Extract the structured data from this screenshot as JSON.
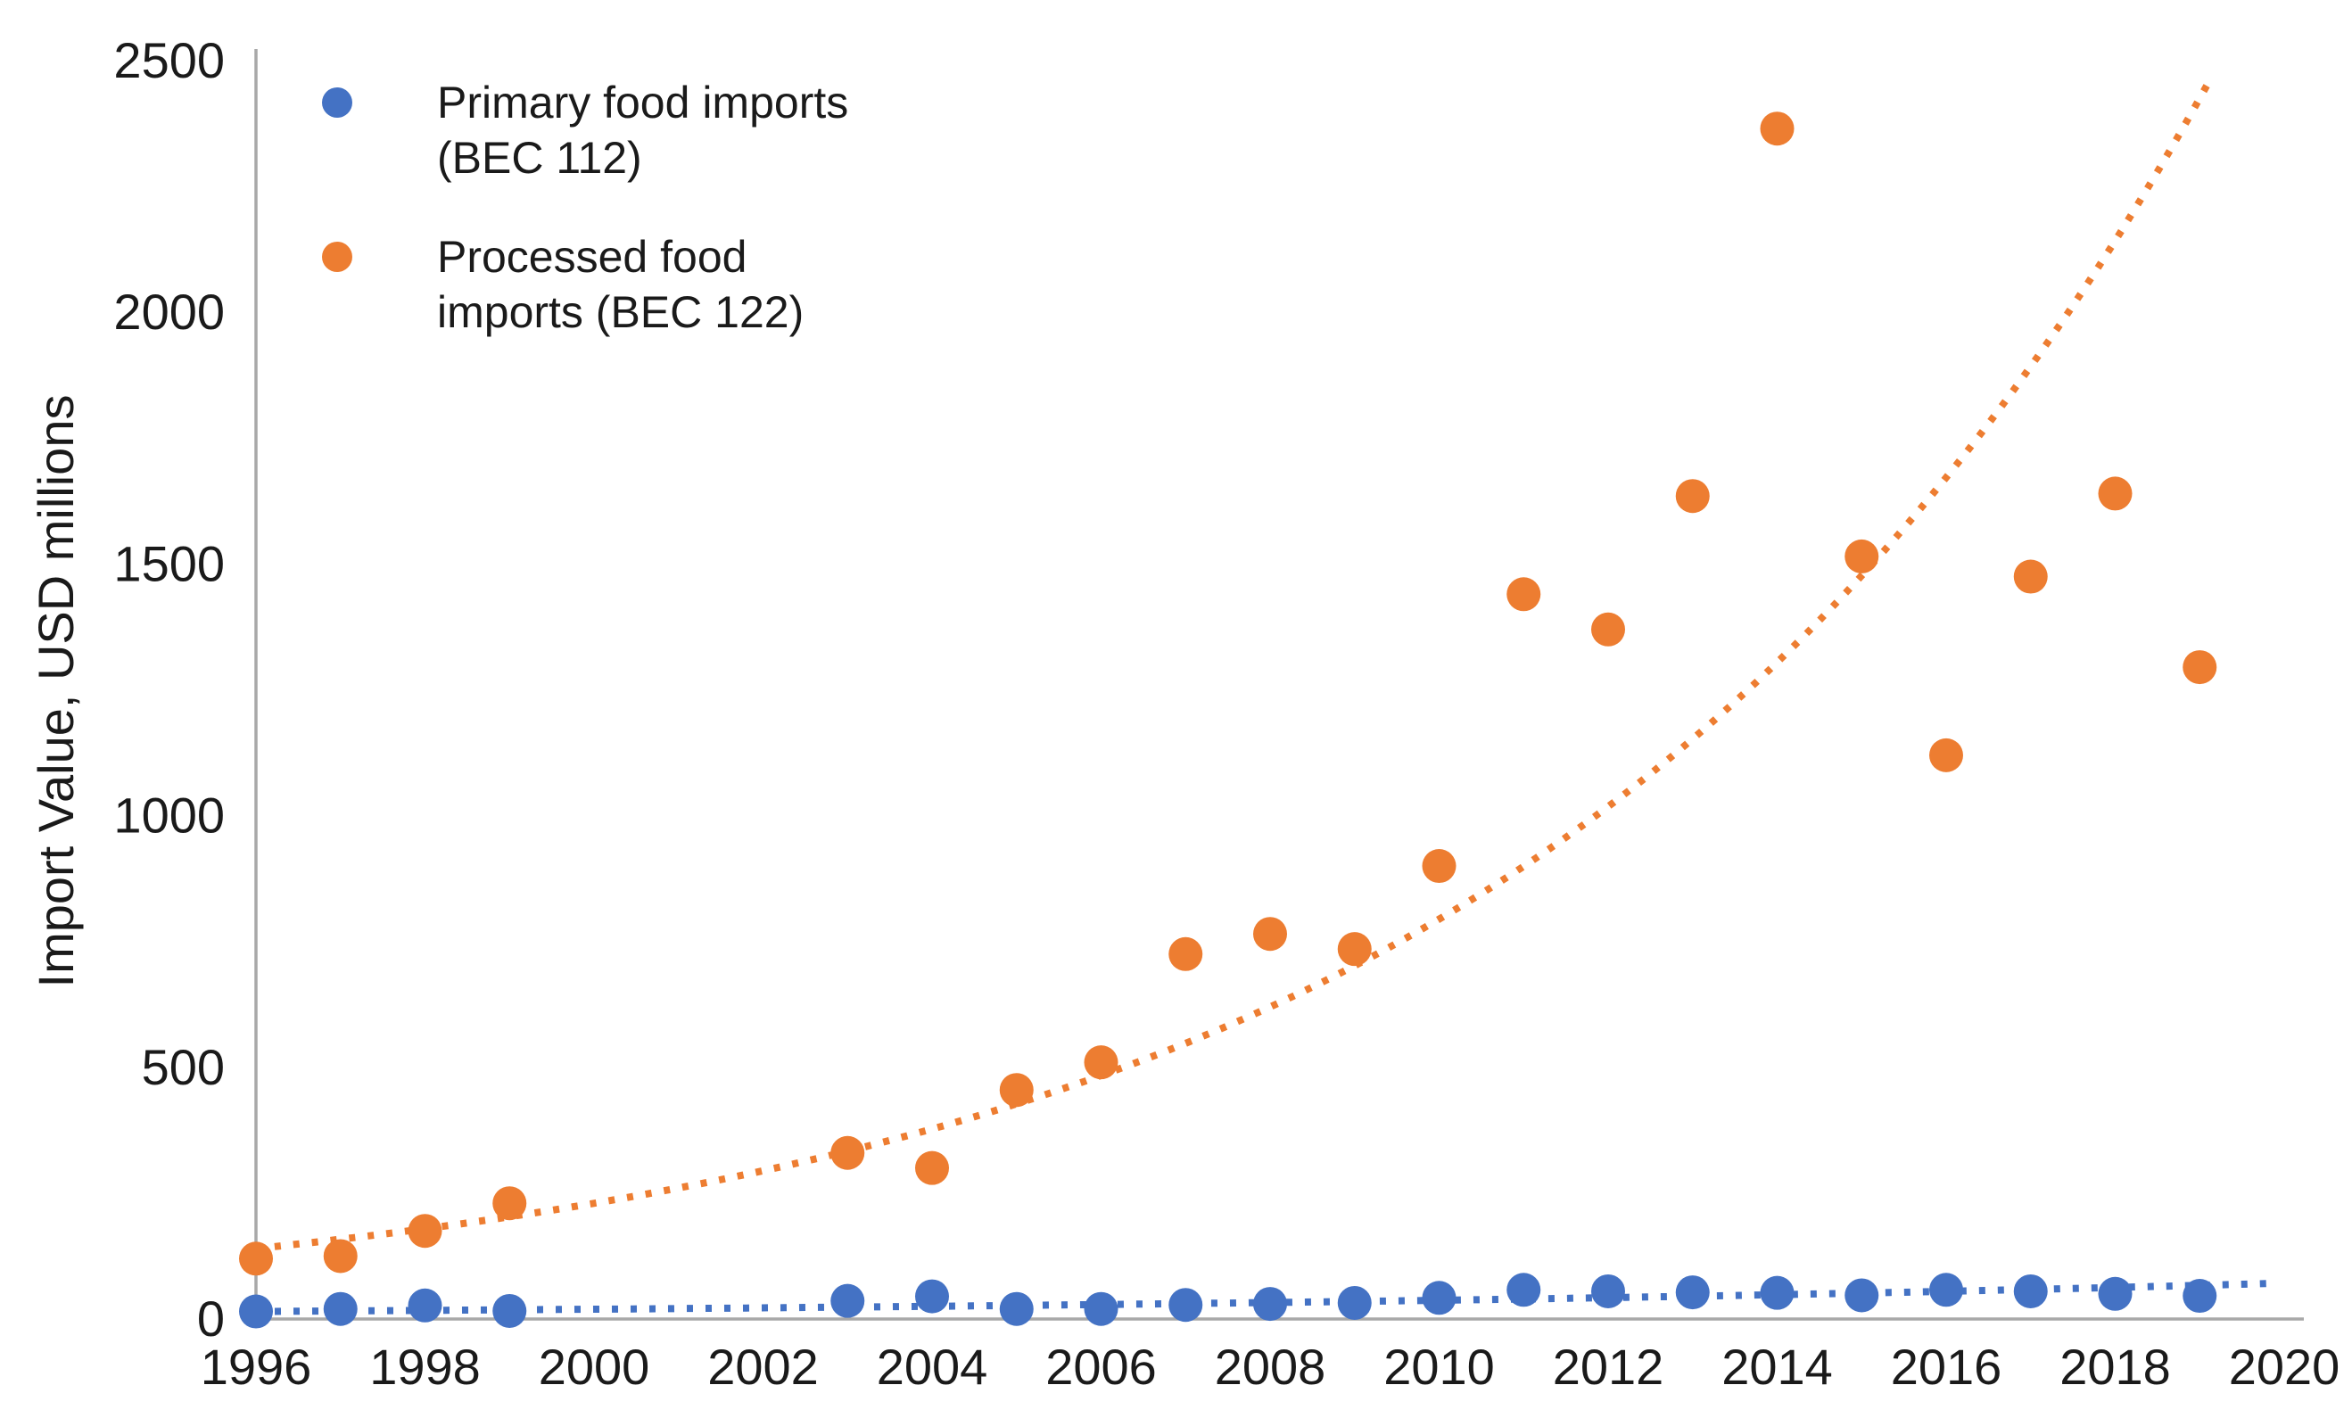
{
  "chart_data": {
    "type": "scatter",
    "title": "",
    "xlabel": "",
    "ylabel": "Import Value, USD millions",
    "xlim": [
      1996,
      2020.3
    ],
    "ylim": [
      0,
      2500
    ],
    "grid": false,
    "x_ticks": [
      "1996",
      "1998",
      "2000",
      "2002",
      "2004",
      "2006",
      "2008",
      "2010",
      "2012",
      "2014",
      "2016",
      "2018",
      "2020"
    ],
    "y_ticks": [
      "0",
      "500",
      "1000",
      "1500",
      "2000",
      "2500"
    ],
    "x": [
      1996,
      1997,
      1998,
      1999,
      2003,
      2004,
      2005,
      2006,
      2007,
      2008,
      2009,
      2010,
      2011,
      2012,
      2013,
      2014,
      2015,
      2016,
      2017,
      2018,
      2019
    ],
    "series": [
      {
        "id": "primary",
        "name": "Primary food imports (BEC 112)",
        "color": "#4472C4",
        "values": [
          15,
          20,
          27,
          16,
          36,
          45,
          20,
          20,
          28,
          30,
          32,
          42,
          58,
          55,
          53,
          52,
          47,
          58,
          55,
          50,
          46
        ]
      },
      {
        "id": "processed",
        "name": "Processed food imports (BEC 122)",
        "color": "#ED7D31",
        "values": [
          120,
          125,
          175,
          230,
          330,
          300,
          455,
          510,
          725,
          765,
          735,
          900,
          1440,
          1370,
          1635,
          2365,
          1515,
          1120,
          1475,
          1640,
          1295
        ]
      }
    ],
    "trendlines": [
      {
        "id": "primary",
        "style": "dotted-exponential",
        "a": 15,
        "b": 0.065,
        "x_start": 1996,
        "x_end": 2019.8
      },
      {
        "id": "processed",
        "style": "dotted-exponential",
        "a": 140,
        "b": 0.124,
        "x_start": 1996,
        "x_end": 2019.1
      }
    ],
    "legend": {
      "position": "top-left",
      "entries": [
        {
          "id": "primary",
          "line1": "Primary food imports",
          "line2": "(BEC 112)",
          "color": "#4472C4"
        },
        {
          "id": "processed",
          "line1": "Processed food",
          "line2": "imports (BEC 122)",
          "color": "#ED7D31"
        }
      ]
    }
  }
}
